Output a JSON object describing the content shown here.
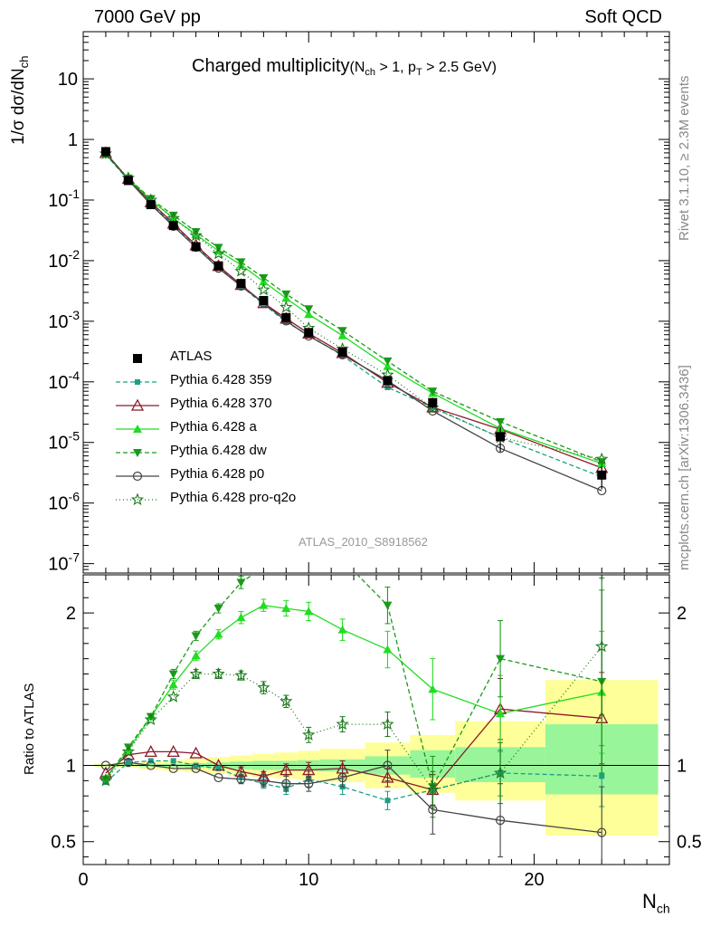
{
  "header": {
    "left": "7000 GeV pp",
    "right": "Soft QCD"
  },
  "side_labels": {
    "rivet": "Rivet 3.1.10, ≥ 2.3M events",
    "mcplots": "mcplots.cern.ch [arXiv:1306.3436]"
  },
  "chart_data": {
    "type": "scatter",
    "title_main": "Charged multiplicity",
    "title_cut": "(N",
    "title_cut_sub": "ch",
    "title_cut_mid": " > 1, p",
    "title_cut_sub2": "T",
    "title_cut_end": " > 2.5 GeV)",
    "watermark": "ATLAS_2010_S8918562",
    "xlabel": "N",
    "xlabel_sub": "ch",
    "ylabel": "1/σ dσ/dN",
    "ylabel_sub": "ch",
    "ratio_ylabel": "Ratio to ATLAS",
    "xlim": [
      0,
      26
    ],
    "ylim": [
      7e-08,
      60
    ],
    "ratio_ylim": [
      0.35,
      2.25
    ],
    "log_y": true,
    "x_ticks": [
      0,
      10,
      20
    ],
    "y_ticks": [
      "10^-7",
      "10^-6",
      "10^-5",
      "10^-4",
      "10^-3",
      "10^-2",
      "10^-1",
      "1",
      "10"
    ],
    "ratio_ticks": [
      "0.5",
      "1",
      "2"
    ],
    "legend_position": "center-left",
    "x": [
      1,
      2,
      3,
      4,
      5,
      6,
      7,
      8,
      9,
      10,
      11.5,
      13.5,
      15.5,
      18.5,
      23
    ],
    "data": {
      "name": "ATLAS",
      "values": [
        0.63,
        0.21,
        0.084,
        0.038,
        0.017,
        0.0082,
        0.0042,
        0.0022,
        0.00115,
        0.00065,
        0.00031,
        0.000105,
        4.55e-05,
        1.25e-05,
        2.9e-06
      ],
      "err_lo": [
        0,
        0,
        0,
        0,
        0,
        0,
        0,
        0,
        0,
        0,
        0,
        0,
        9e-06,
        5.5e-06,
        1.2e-06
      ],
      "err_hi": [
        0,
        0,
        0,
        0,
        0,
        0,
        0,
        0,
        0,
        0,
        0,
        0,
        9e-06,
        5.5e-06,
        1.2e-06
      ]
    },
    "band_stat_sys": {
      "edges": [
        0.5,
        1.5,
        2.5,
        3.5,
        4.5,
        5.5,
        6.5,
        7.5,
        8.5,
        9.5,
        10.5,
        12.5,
        14.5,
        16.5,
        20.5,
        25.5
      ],
      "yellow_lo": [
        0.99,
        0.985,
        0.975,
        0.965,
        0.955,
        0.945,
        0.935,
        0.925,
        0.915,
        0.905,
        0.89,
        0.85,
        0.82,
        0.77,
        0.54
      ],
      "yellow_hi": [
        1.01,
        1.015,
        1.025,
        1.035,
        1.045,
        1.055,
        1.065,
        1.075,
        1.085,
        1.095,
        1.11,
        1.15,
        1.2,
        1.29,
        1.56
      ],
      "green_lo": [
        0.995,
        0.995,
        0.99,
        0.99,
        0.985,
        0.98,
        0.975,
        0.97,
        0.97,
        0.965,
        0.96,
        0.94,
        0.92,
        0.89,
        0.81
      ],
      "green_hi": [
        1.005,
        1.005,
        1.01,
        1.01,
        1.015,
        1.02,
        1.025,
        1.03,
        1.03,
        1.035,
        1.04,
        1.06,
        1.1,
        1.12,
        1.27
      ]
    },
    "series": [
      {
        "name": "Pythia 6.428 359",
        "color": "#1aa085",
        "dash": "5,3",
        "marker": "square_small",
        "values": [
          0.56,
          0.215,
          0.087,
          0.039,
          0.017,
          0.0081,
          0.0038,
          0.0019,
          0.00097,
          0.00059,
          0.00027,
          8.1e-05,
          3.8e-05,
          1.2e-05,
          2.7e-06
        ],
        "ratio": [
          0.89,
          1.02,
          1.03,
          1.03,
          1.0,
          0.98,
          0.92,
          0.88,
          0.85,
          0.91,
          0.86,
          0.77,
          0.84,
          0.95,
          0.93
        ],
        "ratio_err": [
          0.02,
          0.02,
          0.02,
          0.02,
          0.02,
          0.02,
          0.03,
          0.03,
          0.04,
          0.05,
          0.05,
          0.06,
          0.1,
          0.15,
          0.2
        ]
      },
      {
        "name": "Pythia 6.428 370",
        "color": "#8b1a2b",
        "dash": "",
        "marker": "triangle_open",
        "values": [
          0.6,
          0.225,
          0.092,
          0.041,
          0.018,
          0.0082,
          0.004,
          0.002,
          0.00111,
          0.00063,
          0.0003,
          9.7e-05,
          3.8e-05,
          1.65e-05,
          3.8e-06
        ],
        "ratio": [
          0.95,
          1.07,
          1.09,
          1.09,
          1.08,
          1.0,
          0.96,
          0.93,
          0.97,
          0.97,
          0.98,
          0.92,
          0.84,
          1.37,
          1.31
        ],
        "ratio_err": [
          0.02,
          0.02,
          0.02,
          0.02,
          0.02,
          0.02,
          0.03,
          0.03,
          0.04,
          0.05,
          0.05,
          0.06,
          0.1,
          0.2,
          0.3
        ]
      },
      {
        "name": "Pythia 6.428 a",
        "color": "#22dd22",
        "dash": "",
        "marker": "triangle_filled",
        "values": [
          0.57,
          0.225,
          0.1,
          0.05,
          0.027,
          0.0145,
          0.0085,
          0.0045,
          0.0024,
          0.0013,
          0.00058,
          0.00018,
          6.5e-05,
          1.7e-05,
          4.5e-06
        ],
        "ratio": [
          0.92,
          1.1,
          1.32,
          1.53,
          1.72,
          1.86,
          1.97,
          2.05,
          2.03,
          2.01,
          1.89,
          1.76,
          1.5,
          1.34,
          1.48
        ],
        "ratio_err": [
          0.02,
          0.02,
          0.02,
          0.03,
          0.03,
          0.03,
          0.04,
          0.04,
          0.05,
          0.06,
          0.07,
          0.12,
          0.2,
          0.25,
          0.4
        ]
      },
      {
        "name": "Pythia 6.428 dw",
        "color": "#1a9a1a",
        "dash": "5,3",
        "marker": "triangle_down",
        "values": [
          0.56,
          0.23,
          0.105,
          0.056,
          0.03,
          0.0165,
          0.0095,
          0.0052,
          0.0028,
          0.0016,
          0.0007,
          0.00022,
          7e-05,
          2.2e-05,
          4.8e-06
        ],
        "ratio": [
          0.91,
          1.12,
          1.32,
          1.6,
          1.85,
          2.03,
          2.2,
          2.3,
          2.35,
          2.4,
          2.35,
          2.05,
          0.86,
          1.7,
          1.55
        ],
        "ratio_err": [
          0.02,
          0.02,
          0.02,
          0.03,
          0.03,
          0.03,
          0.04,
          0.04,
          0.05,
          0.06,
          0.07,
          0.12,
          0.2,
          0.25,
          0.6
        ]
      },
      {
        "name": "Pythia 6.428 p0",
        "color": "#444444",
        "dash": "",
        "marker": "circle_open",
        "values": [
          0.6,
          0.215,
          0.084,
          0.037,
          0.0166,
          0.0075,
          0.0038,
          0.002,
          0.00101,
          0.00057,
          0.00028,
          0.000105,
          3.3e-05,
          8e-06,
          1.6e-06
        ],
        "ratio": [
          1.0,
          1.02,
          1.0,
          0.98,
          0.98,
          0.92,
          0.91,
          0.9,
          0.88,
          0.88,
          0.92,
          1.0,
          0.71,
          0.64,
          0.56
        ],
        "ratio_err": [
          0.02,
          0.02,
          0.02,
          0.02,
          0.02,
          0.02,
          0.03,
          0.04,
          0.05,
          0.05,
          0.06,
          0.1,
          0.16,
          0.24,
          0.3
        ]
      },
      {
        "name": "Pythia 6.428 pro-q2o",
        "color": "#1a7a1a",
        "dash": "1,3",
        "marker": "star",
        "values": [
          0.58,
          0.23,
          0.1,
          0.05,
          0.026,
          0.013,
          0.0067,
          0.0033,
          0.0017,
          0.00077,
          0.00035,
          0.00013,
          3.7e-05,
          1.2e-05,
          5.3e-06
        ],
        "ratio": [
          0.9,
          1.09,
          1.3,
          1.45,
          1.6,
          1.6,
          1.59,
          1.51,
          1.42,
          1.2,
          1.27,
          1.27,
          0.84,
          0.95,
          1.78
        ],
        "ratio_err": [
          0.02,
          0.02,
          0.02,
          0.02,
          0.03,
          0.03,
          0.03,
          0.04,
          0.04,
          0.05,
          0.05,
          0.08,
          0.12,
          0.2,
          0.45
        ]
      }
    ]
  }
}
